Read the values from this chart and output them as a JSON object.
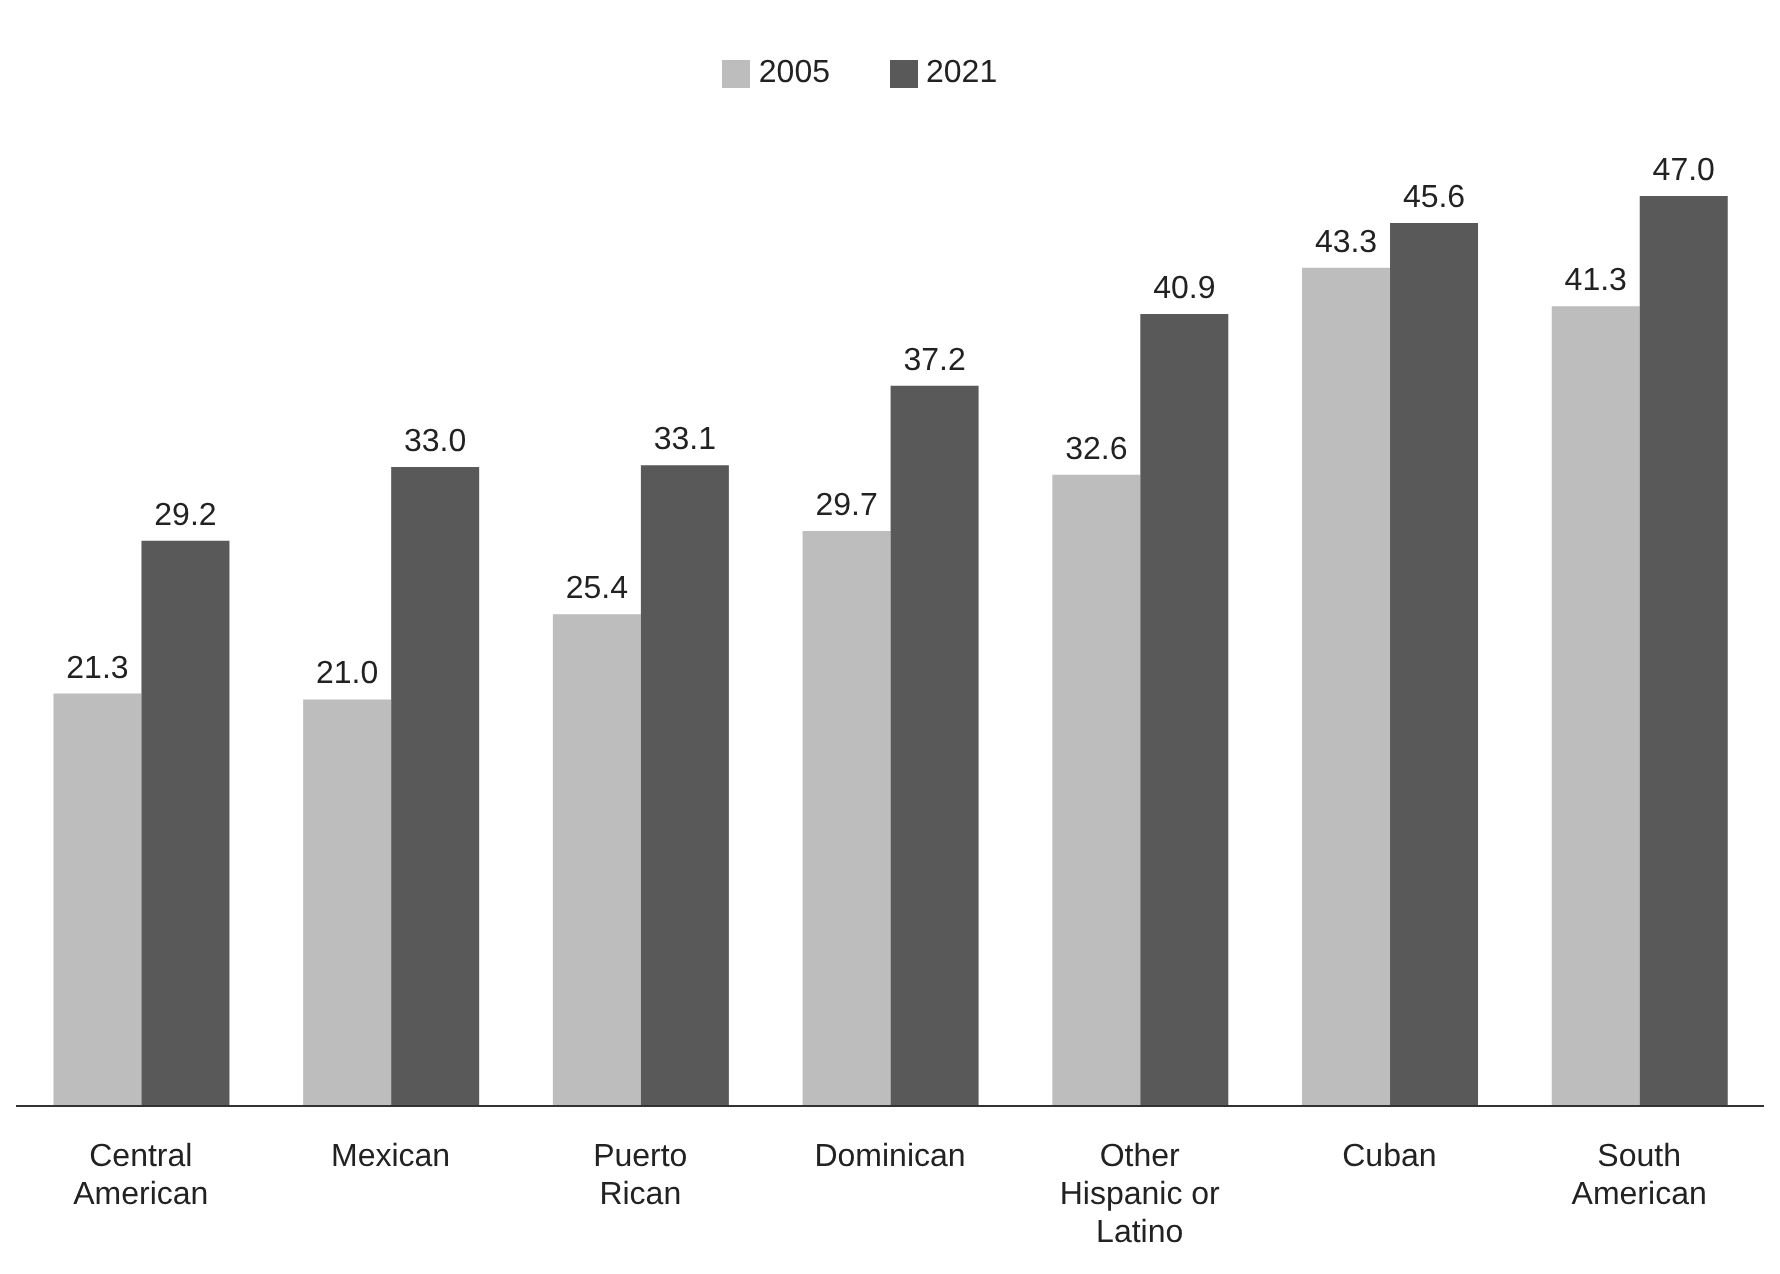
{
  "chart_data": {
    "type": "bar",
    "categories": [
      "Central American",
      "Mexican",
      "Puerto Rican",
      "Dominican",
      "Other Hispanic or Latino",
      "Cuban",
      "South American"
    ],
    "series": [
      {
        "name": "2005",
        "color": "#bdbdbd",
        "values": [
          21.3,
          21.0,
          25.4,
          29.7,
          32.6,
          43.3,
          41.3
        ],
        "value_labels": [
          "21.3",
          "21.0",
          "25.4",
          "29.7",
          "32.6",
          "43.3",
          "41.3"
        ]
      },
      {
        "name": "2021",
        "color": "#595959",
        "values": [
          29.2,
          33.0,
          33.1,
          37.2,
          40.9,
          45.6,
          47.0
        ],
        "value_labels": [
          "29.2",
          "33.0",
          "33.1",
          "37.2",
          "40.9",
          "45.6",
          "47.0"
        ]
      }
    ],
    "legend": "top",
    "grid": false
  }
}
